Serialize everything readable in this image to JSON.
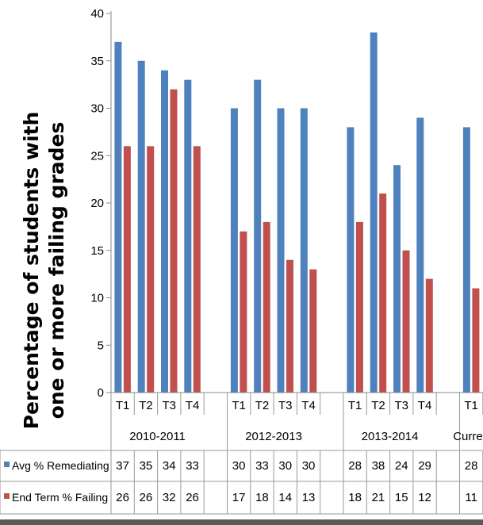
{
  "chart_data": {
    "type": "bar",
    "ylabel_lines": [
      "Percentage of students with",
      "one or more failing grades"
    ],
    "ylim": [
      0,
      40
    ],
    "yticks": [
      0,
      5,
      10,
      15,
      20,
      25,
      30,
      35,
      40
    ],
    "grid": false,
    "groups": [
      {
        "label": "2010-2011",
        "terms": [
          "T1",
          "T2",
          "T3",
          "T4"
        ]
      },
      {
        "label": "2012-2013",
        "terms": [
          "T1",
          "T2",
          "T3",
          "T4"
        ]
      },
      {
        "label": "2013-2014",
        "terms": [
          "T1",
          "T2",
          "T3",
          "T4"
        ]
      },
      {
        "label": "Curren",
        "terms": [
          "T1"
        ]
      }
    ],
    "series": [
      {
        "name": "Avg % Remediating",
        "color": "#4F81BD",
        "values": [
          37,
          35,
          34,
          33,
          30,
          33,
          30,
          30,
          28,
          38,
          24,
          29,
          28
        ]
      },
      {
        "name": "End Term % Failing",
        "color": "#C0504D",
        "values": [
          26,
          26,
          32,
          26,
          17,
          18,
          14,
          13,
          18,
          21,
          15,
          12,
          11
        ]
      }
    ],
    "legend": "data-table-left"
  }
}
